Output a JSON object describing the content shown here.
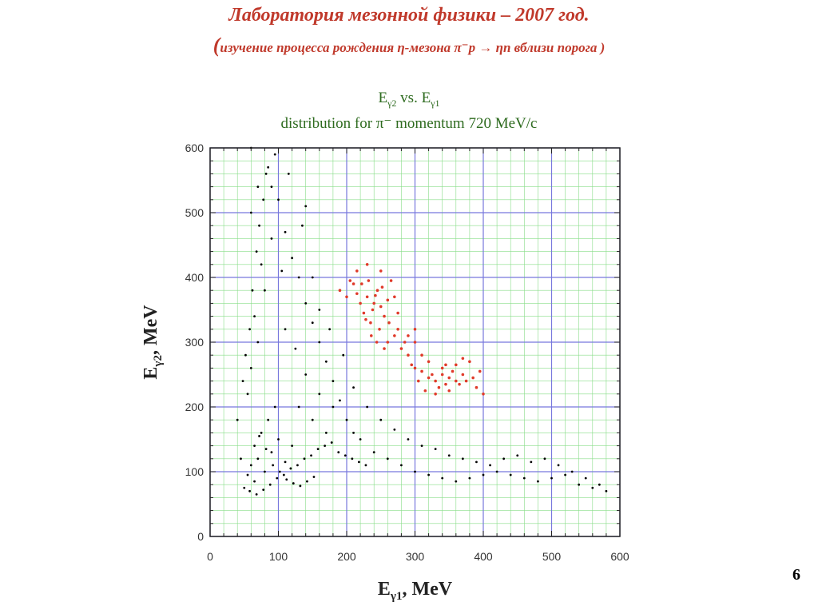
{
  "slide": {
    "title": "Лаборатория мезонной физики – 2007 год.",
    "subtitle_paren_open": "(",
    "subtitle": "изучение  процесса  рождения  η-мезона  π⁻p → ηn  вблизи  порога )",
    "page_number": "6"
  },
  "chart_data": {
    "type": "scatter",
    "title_line1_prefix": "E",
    "title_line1_sub1": "γ2",
    "title_line1_mid": " vs. E",
    "title_line1_sub2": "γ1",
    "title_line2": "distribution for π⁻ momentum 720 MeV/c",
    "xlabel_main": "E",
    "xlabel_sub": "γ1",
    "xlabel_tail": ", MeV",
    "ylabel_main": "E",
    "ylabel_sub": "γ2",
    "ylabel_tail": ", MeV",
    "xlim": [
      0,
      600
    ],
    "ylim": [
      0,
      600
    ],
    "xticks": [
      0,
      100,
      200,
      300,
      400,
      500,
      600
    ],
    "yticks": [
      0,
      100,
      200,
      300,
      400,
      500,
      600
    ],
    "grid": true,
    "colors": {
      "background_points": "#000000",
      "eta_signal_points": "#e03a2a",
      "major_grid": "#7777dd",
      "minor_grid": "#88dd88",
      "title_red": "#c0392b",
      "title_green": "#2e6b1f"
    },
    "series": [
      {
        "color": "#000000",
        "points": [
          [
            55,
            95
          ],
          [
            60,
            110
          ],
          [
            70,
            120
          ],
          [
            80,
            100
          ],
          [
            65,
            85
          ],
          [
            90,
            130
          ],
          [
            100,
            150
          ],
          [
            110,
            115
          ],
          [
            120,
            140
          ],
          [
            75,
            160
          ],
          [
            85,
            180
          ],
          [
            95,
            200
          ],
          [
            55,
            220
          ],
          [
            60,
            260
          ],
          [
            70,
            300
          ],
          [
            65,
            340
          ],
          [
            80,
            380
          ],
          [
            75,
            420
          ],
          [
            90,
            460
          ],
          [
            60,
            500
          ],
          [
            70,
            540
          ],
          [
            85,
            570
          ],
          [
            100,
            520
          ],
          [
            110,
            470
          ],
          [
            120,
            430
          ],
          [
            130,
            400
          ],
          [
            140,
            360
          ],
          [
            150,
            330
          ],
          [
            160,
            300
          ],
          [
            170,
            270
          ],
          [
            180,
            240
          ],
          [
            190,
            210
          ],
          [
            200,
            180
          ],
          [
            210,
            160
          ],
          [
            220,
            150
          ],
          [
            240,
            130
          ],
          [
            260,
            120
          ],
          [
            280,
            110
          ],
          [
            300,
            100
          ],
          [
            320,
            95
          ],
          [
            340,
            90
          ],
          [
            360,
            85
          ],
          [
            380,
            90
          ],
          [
            400,
            95
          ],
          [
            420,
            100
          ],
          [
            440,
            95
          ],
          [
            460,
            90
          ],
          [
            480,
            85
          ],
          [
            500,
            90
          ],
          [
            520,
            95
          ],
          [
            540,
            80
          ],
          [
            560,
            75
          ],
          [
            130,
            200
          ],
          [
            150,
            180
          ],
          [
            170,
            160
          ],
          [
            140,
            250
          ],
          [
            160,
            220
          ],
          [
            180,
            200
          ],
          [
            110,
            320
          ],
          [
            125,
            290
          ],
          [
            45,
            120
          ],
          [
            50,
            75
          ],
          [
            58,
            70
          ],
          [
            68,
            65
          ],
          [
            78,
            72
          ],
          [
            88,
            80
          ],
          [
            98,
            90
          ],
          [
            108,
            95
          ],
          [
            118,
            105
          ],
          [
            128,
            110
          ],
          [
            138,
            120
          ],
          [
            148,
            125
          ],
          [
            158,
            135
          ],
          [
            168,
            140
          ],
          [
            178,
            145
          ],
          [
            188,
            130
          ],
          [
            198,
            125
          ],
          [
            208,
            120
          ],
          [
            218,
            115
          ],
          [
            228,
            110
          ],
          [
            60,
            600
          ],
          [
            95,
            590
          ],
          [
            115,
            560
          ],
          [
            140,
            510
          ],
          [
            135,
            480
          ],
          [
            105,
            410
          ],
          [
            150,
            400
          ],
          [
            160,
            350
          ],
          [
            175,
            320
          ],
          [
            195,
            280
          ],
          [
            210,
            230
          ],
          [
            230,
            200
          ],
          [
            250,
            180
          ],
          [
            270,
            165
          ],
          [
            290,
            150
          ],
          [
            310,
            140
          ],
          [
            330,
            135
          ],
          [
            350,
            125
          ],
          [
            370,
            120
          ],
          [
            390,
            115
          ],
          [
            410,
            110
          ],
          [
            430,
            120
          ],
          [
            450,
            125
          ],
          [
            470,
            115
          ],
          [
            490,
            120
          ],
          [
            510,
            110
          ],
          [
            530,
            100
          ],
          [
            550,
            90
          ],
          [
            570,
            80
          ],
          [
            580,
            70
          ],
          [
            65,
            140
          ],
          [
            72,
            155
          ],
          [
            82,
            135
          ],
          [
            92,
            110
          ],
          [
            102,
            100
          ],
          [
            112,
            88
          ],
          [
            122,
            82
          ],
          [
            132,
            78
          ],
          [
            142,
            85
          ],
          [
            152,
            92
          ],
          [
            40,
            180
          ],
          [
            48,
            240
          ],
          [
            52,
            280
          ],
          [
            58,
            320
          ],
          [
            62,
            380
          ],
          [
            68,
            440
          ],
          [
            72,
            480
          ],
          [
            78,
            520
          ],
          [
            82,
            560
          ],
          [
            90,
            540
          ]
        ]
      },
      {
        "color": "#e03a2a",
        "points": [
          [
            230,
            370
          ],
          [
            240,
            360
          ],
          [
            225,
            345
          ],
          [
            250,
            355
          ],
          [
            235,
            330
          ],
          [
            245,
            380
          ],
          [
            220,
            360
          ],
          [
            255,
            340
          ],
          [
            232,
            395
          ],
          [
            248,
            320
          ],
          [
            215,
            375
          ],
          [
            260,
            365
          ],
          [
            238,
            350
          ],
          [
            228,
            335
          ],
          [
            242,
            372
          ],
          [
            222,
            390
          ],
          [
            252,
            385
          ],
          [
            236,
            310
          ],
          [
            244,
            300
          ],
          [
            210,
            390
          ],
          [
            200,
            370
          ],
          [
            190,
            380
          ],
          [
            205,
            395
          ],
          [
            215,
            410
          ],
          [
            230,
            420
          ],
          [
            250,
            410
          ],
          [
            265,
            395
          ],
          [
            270,
            370
          ],
          [
            275,
            345
          ],
          [
            262,
            330
          ],
          [
            330,
            240
          ],
          [
            340,
            250
          ],
          [
            350,
            245
          ],
          [
            345,
            235
          ],
          [
            355,
            255
          ],
          [
            360,
            240
          ],
          [
            335,
            230
          ],
          [
            325,
            250
          ],
          [
            365,
            235
          ],
          [
            340,
            260
          ],
          [
            320,
            245
          ],
          [
            370,
            250
          ],
          [
            350,
            225
          ],
          [
            345,
            265
          ],
          [
            330,
            220
          ],
          [
            375,
            240
          ],
          [
            360,
            265
          ],
          [
            310,
            255
          ],
          [
            385,
            245
          ],
          [
            300,
            260
          ],
          [
            290,
            280
          ],
          [
            280,
            290
          ],
          [
            300,
            300
          ],
          [
            310,
            280
          ],
          [
            320,
            270
          ],
          [
            295,
            265
          ],
          [
            305,
            240
          ],
          [
            315,
            225
          ],
          [
            390,
            230
          ],
          [
            400,
            220
          ],
          [
            395,
            255
          ],
          [
            380,
            270
          ],
          [
            370,
            275
          ],
          [
            285,
            300
          ],
          [
            270,
            310
          ],
          [
            260,
            300
          ],
          [
            255,
            290
          ],
          [
            275,
            320
          ],
          [
            290,
            310
          ],
          [
            300,
            320
          ]
        ]
      }
    ]
  }
}
